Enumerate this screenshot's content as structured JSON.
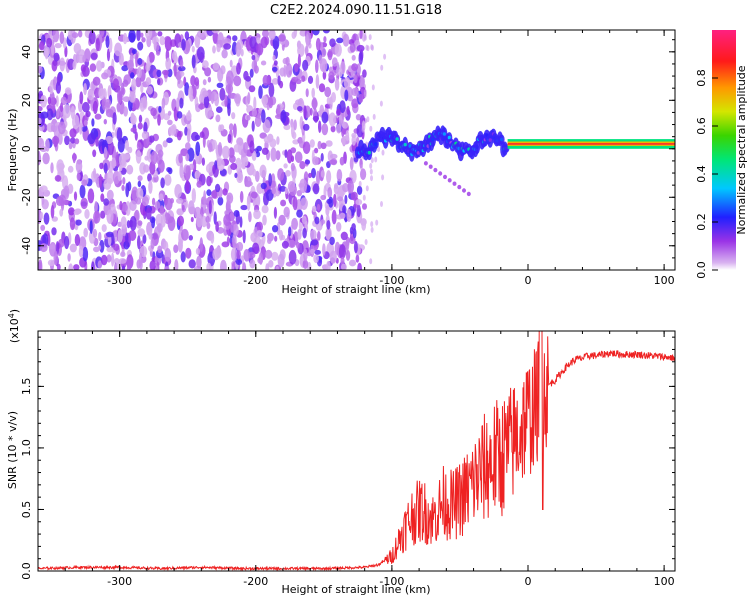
{
  "title": "C2E2.2024.090.11.51.G18",
  "chart_data": [
    {
      "type": "heatmap",
      "xlabel": "Height of straight line (km)",
      "ylabel": "Frequency (Hz)",
      "xlim": [
        -360,
        108
      ],
      "ylim": [
        -50,
        49
      ],
      "xticks": [
        -300,
        -200,
        -100,
        0,
        100
      ],
      "yticks": [
        -40,
        -20,
        0,
        20,
        40
      ],
      "colorbar": {
        "label": "Normalized spectral amplitude",
        "range": [
          0.0,
          1.0
        ],
        "ticks": [
          0.0,
          0.2,
          0.4,
          0.6,
          0.8
        ],
        "colormap": "rainbow (purple-blue-cyan-green-yellow-orange-red-magenta)"
      },
      "regions": [
        {
          "description": "broadband noise, low amplitude",
          "x_range": [
            -360,
            -120
          ],
          "freq_range": [
            -50,
            49
          ],
          "amplitude": [
            0.0,
            0.1
          ]
        },
        {
          "description": "signal trace, moderate amplitude",
          "x_range": [
            -125,
            -15
          ],
          "freq_center": 2,
          "amplitude": [
            0.1,
            0.45
          ]
        },
        {
          "description": "signal trace, high amplitude",
          "x_range": [
            -15,
            108
          ],
          "freq_center": 2,
          "amplitude": [
            0.8,
            1.0
          ]
        }
      ]
    },
    {
      "type": "line",
      "xlabel": "Height of straight line (km)",
      "ylabel": "SNR (10 * v/v)",
      "y_multiplier_label": "(x10",
      "y_multiplier_exp": "4",
      "xlim": [
        -360,
        108
      ],
      "ylim": [
        0,
        1.95
      ],
      "xticks": [
        -300,
        -200,
        -100,
        0,
        100
      ],
      "yticks": [
        0.0,
        0.5,
        1.0,
        1.5
      ],
      "ytick_labels": [
        "0.0",
        "0.5",
        "1.0",
        "1.5"
      ],
      "series": [
        {
          "color": "#ee2222",
          "x": [
            -360,
            -330,
            -300,
            -270,
            -240,
            -210,
            -180,
            -150,
            -120,
            -110,
            -100,
            -92,
            -85,
            -78,
            -70,
            -62,
            -55,
            -48,
            -40,
            -33,
            -26,
            -20,
            -14,
            -8,
            -3,
            0,
            4,
            8,
            10,
            12,
            16,
            20,
            25,
            30,
            35,
            40,
            45,
            50,
            60,
            70,
            80,
            90,
            100,
            108
          ],
          "y": [
            0.02,
            0.03,
            0.03,
            0.02,
            0.03,
            0.02,
            0.02,
            0.02,
            0.03,
            0.05,
            0.12,
            0.32,
            0.45,
            0.5,
            0.42,
            0.56,
            0.53,
            0.6,
            0.72,
            0.82,
            0.9,
            0.92,
            1.0,
            1.1,
            1.2,
            1.25,
            1.3,
            1.4,
            1.4,
            1.46,
            1.52,
            1.55,
            1.62,
            1.68,
            1.72,
            1.73,
            1.75,
            1.75,
            1.77,
            1.76,
            1.76,
            1.75,
            1.74,
            1.73
          ]
        }
      ]
    }
  ]
}
